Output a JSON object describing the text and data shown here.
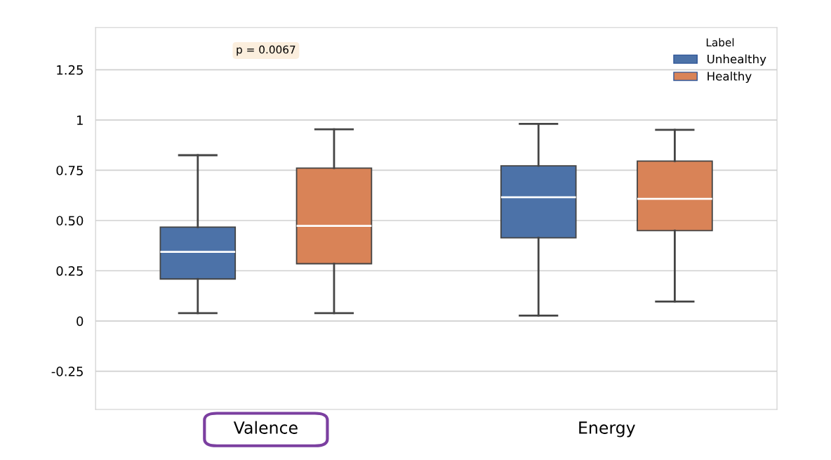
{
  "chart_data": {
    "type": "box",
    "categories": [
      "Valence",
      "Energy"
    ],
    "legend_title": "Label",
    "legend": "top right",
    "grid": "y",
    "ylim": [
      -0.44,
      1.46
    ],
    "yticks": [
      -0.25,
      0,
      0.25,
      {
        "value": 0.5,
        "label": "0.50"
      },
      0.75,
      1,
      1.25
    ],
    "annotations": [
      "p = 0.0067"
    ],
    "series": [
      {
        "name": "Unhealthy",
        "color": "#4c72a8",
        "boxes": [
          {
            "low": 0.039,
            "q1": 0.209,
            "median": 0.344,
            "q3": 0.467,
            "high": 0.825
          },
          {
            "low": 0.027,
            "q1": 0.414,
            "median": 0.616,
            "q3": 0.772,
            "high": 0.981
          }
        ]
      },
      {
        "name": "Healthy",
        "color": "#d98357",
        "boxes": [
          {
            "low": 0.039,
            "q1": 0.285,
            "median": 0.473,
            "q3": 0.761,
            "high": 0.954
          },
          {
            "low": 0.097,
            "q1": 0.45,
            "median": 0.608,
            "q3": 0.796,
            "high": 0.951
          }
        ]
      }
    ]
  }
}
